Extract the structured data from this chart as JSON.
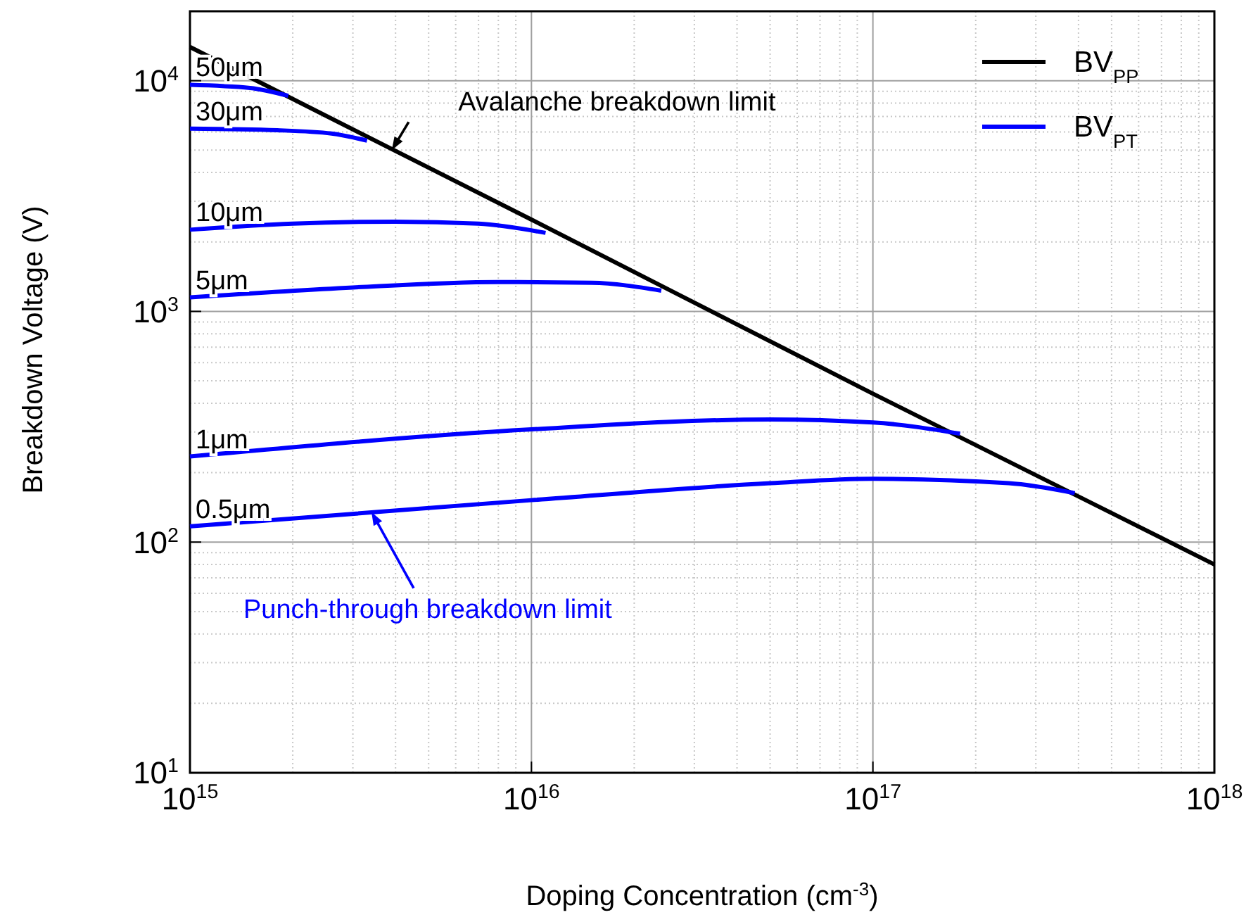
{
  "chart_data": {
    "type": "line",
    "xlabel": "Doping Concentration (cm$^{-3}$)",
    "ylabel": "Breakdown Voltage (V)",
    "log": "xy",
    "grid": true,
    "legend": "top right",
    "line_style": "solid",
    "marker": "none",
    "xlim": [
      1000000000000000.0,
      1e+18
    ],
    "xticks": [
      {
        "value": 1000000000000000.0,
        "label": "10$^{15}$"
      },
      {
        "value": 1e+16,
        "label": "10$^{16}$"
      },
      {
        "value": 1e+17,
        "label": "10$^{17}$"
      },
      {
        "value": 1e+18,
        "label": "10$^{18}$"
      }
    ],
    "ylim": [
      10,
      20000
    ],
    "yticks": [
      {
        "value": 10,
        "label": "10$^{1}$"
      },
      {
        "value": 100,
        "label": "10$^{2}$"
      },
      {
        "value": 1000,
        "label": "10$^{3}$"
      },
      {
        "value": 10000,
        "label": "10$^{4}$"
      }
    ],
    "series": [
      {
        "name": "BV$_{PP}$",
        "color": "#000000",
        "x": [
          1000000000000000.0,
          1e+16,
          1e+17,
          1e+18
        ],
        "values": [
          14000,
          2500,
          440,
          80
        ]
      },
      {
        "name": "BV$_{PT}$",
        "color": "#0000ff",
        "x": [
          1000000000000000.0,
          1500000000000000.0,
          1940000000000000.0
        ],
        "values": [
          9600,
          9300,
          8600
        ]
      },
      {
        "color": "#0000ff",
        "x": [
          1000000000000000.0,
          1800000000000000.0,
          2600000000000000.0,
          3300000000000000.0
        ],
        "values": [
          6200,
          6100,
          5900,
          5500
        ]
      },
      {
        "color": "#0000ff",
        "x": [
          1000000000000000.0,
          2000000000000000.0,
          4000000000000000.0,
          7000000000000000.0,
          1.1e+16
        ],
        "values": [
          2260,
          2400,
          2450,
          2400,
          2190
        ]
      },
      {
        "color": "#0000ff",
        "x": [
          1000000000000000.0,
          3000000000000000.0,
          8000000000000000.0,
          1.5e+16,
          2.4e+16
        ],
        "values": [
          1150,
          1270,
          1340,
          1330,
          1230
        ]
      },
      {
        "color": "#0000ff",
        "x": [
          1000000000000000.0,
          1e+16,
          5e+16,
          1e+17,
          1.8e+17
        ],
        "values": [
          235,
          308,
          340,
          330,
          295
        ]
      },
      {
        "color": "#0000ff",
        "x": [
          1000000000000000.0,
          1e+16,
          5e+16,
          1e+17,
          2.5e+17,
          3.9e+17
        ],
        "values": [
          117,
          152,
          180,
          188,
          180,
          163
        ]
      }
    ],
    "annotations": [
      {
        "text": "50μm",
        "x": 1000000000000000.0,
        "y": 9600
      },
      {
        "text": "30μm",
        "x": 1000000000000000.0,
        "y": 6200
      },
      {
        "text": "10μm",
        "x": 1000000000000000.0,
        "y": 2260
      },
      {
        "text": "5μm",
        "x": 1000000000000000.0,
        "y": 1150
      },
      {
        "text": "1μm",
        "x": 1000000000000000.0,
        "y": 235
      },
      {
        "text": "0.5μm",
        "x": 1000000000000000.0,
        "y": 117
      },
      {
        "text": "Avalanche breakdown limit",
        "x": 3900000000000000.0,
        "y": 5000
      },
      {
        "text": "Punch-through breakdown limit",
        "x": 3400000000000000.0,
        "y": 135
      }
    ]
  }
}
